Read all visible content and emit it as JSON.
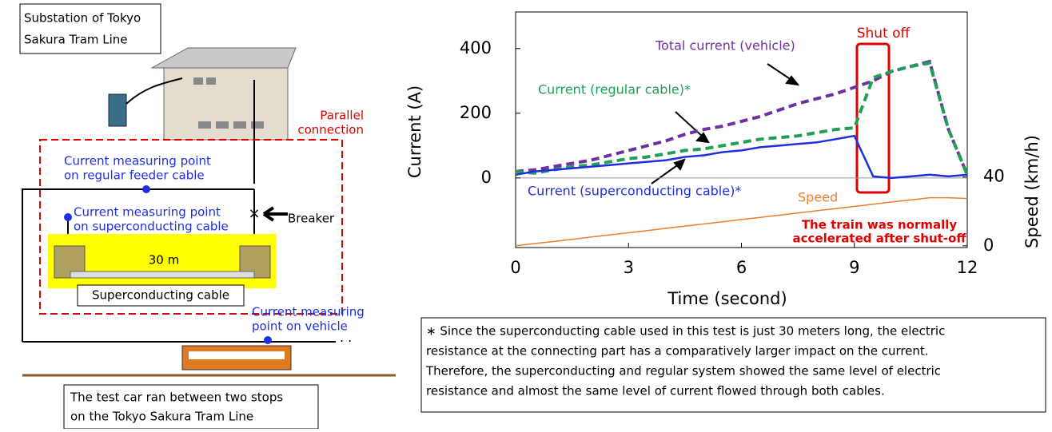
{
  "diagram": {
    "substation": [
      "Substation of Tokyo",
      "Sakura Tram Line"
    ],
    "parallel": [
      "Parallel",
      "connection"
    ],
    "feeder_point": [
      "Current measuring point",
      "on regular feeder cable"
    ],
    "sc_point": [
      "Current measuring point",
      "on superconducting cable"
    ],
    "breaker": "Breaker",
    "length": "30 m",
    "cable": "Superconducting cable",
    "vehicle_point": [
      "Current measuring",
      "point on vehicle"
    ],
    "test_car": [
      "The test car ran between two stops",
      "on the Tokyo Sakura Tram Line"
    ]
  },
  "chart_data": {
    "type": "line",
    "xlabel": "Time (second)",
    "ylabel": "Current (A)",
    "y2label": "Speed (km/h)",
    "x": [
      0,
      0.5,
      1,
      1.5,
      2,
      2.5,
      3,
      3.5,
      4,
      4.5,
      5,
      5.5,
      6,
      6.5,
      7,
      7.5,
      8,
      8.5,
      9,
      9.5,
      10,
      10.5,
      11,
      11.5,
      12
    ],
    "xlim": [
      0,
      12
    ],
    "xticks": [
      0,
      3,
      6,
      9,
      12
    ],
    "ylim": [
      -215,
      513
    ],
    "yticks": [
      0,
      200,
      400
    ],
    "y2lim": [
      -1,
      136
    ],
    "y2ticks": [
      0,
      40
    ],
    "series": [
      {
        "name": "Total current (vehicle)",
        "color": "#7030a0",
        "dashed": true,
        "values": [
          20,
          25,
          35,
          45,
          55,
          70,
          85,
          100,
          115,
          135,
          150,
          160,
          175,
          190,
          210,
          230,
          245,
          260,
          280,
          300,
          330,
          345,
          360,
          150,
          10
        ]
      },
      {
        "name": "Current (regular cable)*",
        "color": "#1fa055",
        "dashed": true,
        "values": [
          20,
          15,
          25,
          35,
          40,
          50,
          60,
          65,
          75,
          85,
          90,
          100,
          110,
          120,
          125,
          130,
          140,
          150,
          155,
          310,
          330,
          345,
          355,
          150,
          10
        ]
      },
      {
        "name": "Current (superconducting cable)*",
        "color": "#1f2fe0",
        "dashed": false,
        "values": [
          10,
          20,
          25,
          30,
          35,
          40,
          45,
          50,
          55,
          65,
          70,
          80,
          85,
          95,
          100,
          105,
          110,
          120,
          130,
          5,
          0,
          5,
          10,
          5,
          10
        ]
      },
      {
        "name": "Speed",
        "color": "#ed7d31",
        "dashed": false,
        "axis": "y2",
        "values": [
          0,
          1.3,
          2.5,
          3.8,
          5.1,
          6.4,
          7.6,
          8.9,
          10.2,
          11.5,
          12.7,
          14,
          15.3,
          16.5,
          17.8,
          19.1,
          20.4,
          21.6,
          22.9,
          24.2,
          25.5,
          26.7,
          28,
          28,
          27.5
        ]
      }
    ],
    "annotations": [
      "Shut off",
      "The train was normally",
      "accelerated after  shut-off"
    ],
    "footnote": [
      "∗ Since the superconducting cable used in this test is just 30 meters long, the electric",
      "resistance at the connecting part has a comparatively larger impact on the  current.",
      "Therefore, the superconducting and regular system showed the same level of electric",
      "resistance and almost the same level of current flowed through both cables."
    ]
  }
}
